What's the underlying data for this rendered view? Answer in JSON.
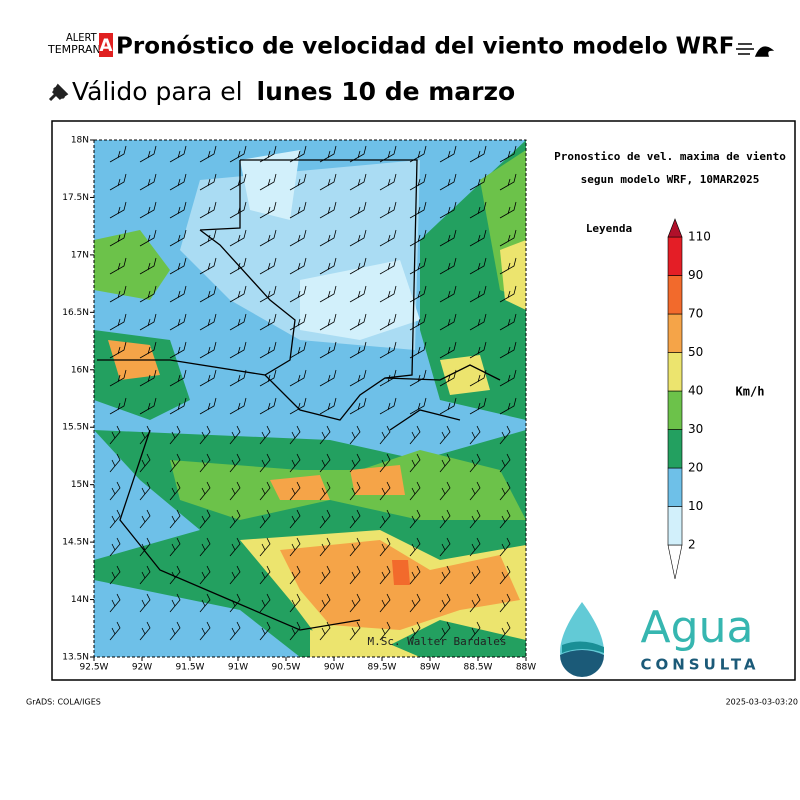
{
  "header": {
    "logo": {
      "line1": "ALERT",
      "line2": "TEMPRAN",
      "badge": "A"
    },
    "title": "Pronóstico de velocidad del viento modelo WRF",
    "subtitle_prefix": "Válido para el",
    "subtitle_date": "lunes 10 de marzo"
  },
  "map": {
    "plot_title_lines": [
      "Pronostico de vel. maxima de viento",
      "segun modelo WRF, 10MAR2025"
    ],
    "lat_labels": [
      "18N",
      "17.5N",
      "17N",
      "16.5N",
      "16N",
      "15.5N",
      "15N",
      "14.5N",
      "14N",
      "13.5N"
    ],
    "lon_labels": [
      "92.5W",
      "92W",
      "91.5W",
      "91W",
      "90.5W",
      "90W",
      "89.5W",
      "89W",
      "88.5W",
      "88W"
    ],
    "legend_title": "Leyenda",
    "legend_levels": [
      2,
      10,
      20,
      30,
      40,
      50,
      70,
      90,
      110
    ],
    "legend_colors": [
      "#ffffff",
      "#d2f0fb",
      "#6ec0e8",
      "#23a060",
      "#6cc24a",
      "#ece46e",
      "#f5a448",
      "#f26a2c",
      "#e41e26",
      "#b0102a"
    ],
    "unit": "Km/h",
    "credit": "M.Sc. Walter Bardales"
  },
  "brand": {
    "name": "Agua",
    "sub": "CONSULTA"
  },
  "footer": {
    "left": "GrADS: COLA/IGES",
    "right": "2025-03-03-03:20"
  }
}
